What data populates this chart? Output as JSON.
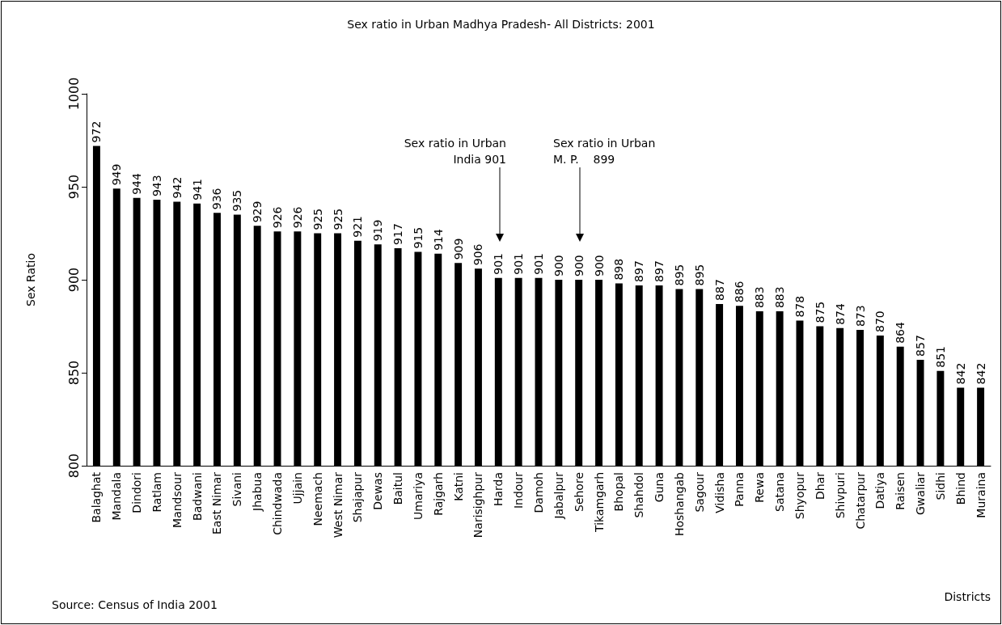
{
  "chart_data": {
    "type": "bar",
    "title": "Sex ratio in Urban Madhya Pradesh- All Districts: 2001",
    "xlabel": "Districts",
    "ylabel": "Sex Ratio",
    "categories": [
      "Balaghat",
      "Mandala",
      "Dindori",
      "Ratlam",
      "Mandsour",
      "Badwani",
      "East Nimar",
      "Sivani",
      "Jhabua",
      "Chindwada",
      "Ujjain",
      "Neemach",
      "West Nimar",
      "Shajapur",
      "Dewas",
      "Baitul",
      "Umariya",
      "Rajgarh",
      "Katni",
      "Narisighpur",
      "Harda",
      "Indour",
      "Damoh",
      "Jabalpur",
      "Sehore",
      "Tikamgarh",
      "Bhopal",
      "Shahdol",
      "Guna",
      "Hoshangab",
      "Sagour",
      "Vidisha",
      "Panna",
      "Rewa",
      "Satana",
      "Shyopur",
      "Dhar",
      "Shivpuri",
      "Chatarpur",
      "Datiya",
      "Raisen",
      "Gwaliar",
      "Sidhi",
      "Bhind",
      "Muraina"
    ],
    "values": [
      972,
      949,
      944,
      943,
      942,
      941,
      936,
      935,
      929,
      926,
      926,
      925,
      925,
      921,
      919,
      917,
      915,
      914,
      909,
      906,
      901,
      901,
      901,
      900,
      900,
      900,
      898,
      897,
      897,
      895,
      895,
      887,
      886,
      883,
      883,
      878,
      875,
      874,
      873,
      870,
      864,
      857,
      851,
      842,
      842
    ],
    "color": "#000000",
    "ylim": [
      800,
      1000
    ],
    "yticks": [
      800,
      850,
      900,
      950,
      1000
    ],
    "grid": false,
    "data_labels": true,
    "annotations": [
      "Sex ratio in Urban\nIndia 901",
      "Sex ratio in Urban\nM. P.    899",
      "Source: Census of India 2001"
    ]
  }
}
